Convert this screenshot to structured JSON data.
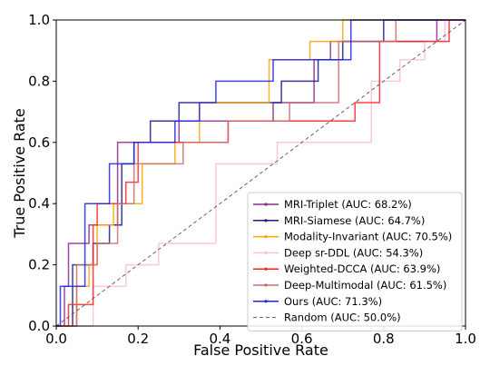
{
  "chart_data": {
    "type": "line",
    "title": "",
    "xlabel": "False Positive Rate",
    "ylabel": "True Positive Rate",
    "xlim": [
      0,
      1
    ],
    "ylim": [
      0,
      1
    ],
    "xticks": [
      "0.0",
      "0.2",
      "0.4",
      "0.6",
      "0.8",
      "1.0"
    ],
    "yticks": [
      "0.0",
      "0.2",
      "0.4",
      "0.6",
      "0.8",
      "1.0"
    ],
    "grid": false,
    "legend_position": "lower-right",
    "series": [
      {
        "name": "MRI-Triplet (AUC: 68.2%)",
        "color": "#8b2a8b",
        "x": [
          0,
          0.02,
          0.02,
          0.03,
          0.03,
          0.08,
          0.08,
          0.15,
          0.15,
          0.3,
          0.3,
          0.53,
          0.53,
          0.63,
          0.63,
          0.67,
          0.67,
          0.79,
          0.79,
          0.93,
          0.93,
          1.0
        ],
        "y": [
          0,
          0,
          0.13,
          0.13,
          0.27,
          0.27,
          0.33,
          0.33,
          0.6,
          0.6,
          0.67,
          0.67,
          0.73,
          0.73,
          0.87,
          0.87,
          0.93,
          0.93,
          0.93,
          0.93,
          1.0,
          1.0
        ]
      },
      {
        "name": "MRI-Siamese (AUC: 64.7%)",
        "color": "#1a1a8c",
        "x": [
          0,
          0.04,
          0.04,
          0.09,
          0.09,
          0.13,
          0.13,
          0.16,
          0.16,
          0.19,
          0.19,
          0.23,
          0.23,
          0.3,
          0.3,
          0.55,
          0.55,
          0.64,
          0.64,
          0.7,
          0.7,
          0.8,
          0.8,
          0.86,
          0.86,
          1.0
        ],
        "y": [
          0,
          0,
          0.2,
          0.2,
          0.27,
          0.27,
          0.33,
          0.33,
          0.53,
          0.53,
          0.6,
          0.6,
          0.67,
          0.67,
          0.73,
          0.73,
          0.8,
          0.8,
          0.87,
          0.87,
          0.93,
          0.93,
          1.0,
          1.0,
          1.0,
          1.0
        ]
      },
      {
        "name": "Modality-Invariant (AUC: 70.5%)",
        "color": "#ffa500",
        "x": [
          0,
          0.05,
          0.05,
          0.08,
          0.08,
          0.1,
          0.1,
          0.14,
          0.14,
          0.21,
          0.21,
          0.29,
          0.29,
          0.35,
          0.35,
          0.52,
          0.52,
          0.62,
          0.62,
          0.7,
          0.7,
          0.72,
          0.72,
          1.0
        ],
        "y": [
          0,
          0,
          0.13,
          0.13,
          0.2,
          0.2,
          0.33,
          0.33,
          0.4,
          0.4,
          0.53,
          0.53,
          0.6,
          0.6,
          0.73,
          0.73,
          0.87,
          0.87,
          0.93,
          0.93,
          1.0,
          1.0,
          1.0,
          1.0
        ]
      },
      {
        "name": "Deep sr-DDL (AUC: 54.3%)",
        "color": "#ffc0cb",
        "x": [
          0,
          0.09,
          0.09,
          0.17,
          0.17,
          0.25,
          0.25,
          0.39,
          0.39,
          0.54,
          0.54,
          0.77,
          0.77,
          0.84,
          0.84,
          0.9,
          0.9,
          0.95,
          0.95,
          1.0
        ],
        "y": [
          0,
          0,
          0.13,
          0.13,
          0.2,
          0.2,
          0.27,
          0.27,
          0.53,
          0.53,
          0.6,
          0.6,
          0.8,
          0.8,
          0.87,
          0.87,
          0.93,
          0.93,
          1.0,
          1.0
        ]
      },
      {
        "name": "Weighted-DCCA (AUC: 63.9%)",
        "color": "#ff2222",
        "x": [
          0,
          0.03,
          0.03,
          0.09,
          0.09,
          0.1,
          0.1,
          0.17,
          0.17,
          0.2,
          0.2,
          0.23,
          0.23,
          0.42,
          0.42,
          0.53,
          0.53,
          0.73,
          0.73,
          0.79,
          0.79,
          0.96,
          0.96,
          1.0
        ],
        "y": [
          0,
          0,
          0.07,
          0.07,
          0.33,
          0.33,
          0.4,
          0.4,
          0.47,
          0.47,
          0.6,
          0.6,
          0.6,
          0.6,
          0.67,
          0.67,
          0.67,
          0.67,
          0.73,
          0.73,
          0.93,
          0.93,
          1.0,
          1.0
        ]
      },
      {
        "name": "Deep-Multimodal (AUC: 61.5%)",
        "color": "#c96b6b",
        "x": [
          0,
          0.05,
          0.05,
          0.1,
          0.1,
          0.15,
          0.15,
          0.19,
          0.19,
          0.31,
          0.31,
          0.42,
          0.42,
          0.57,
          0.57,
          0.69,
          0.69,
          0.83,
          0.83,
          1.0
        ],
        "y": [
          0,
          0,
          0.2,
          0.2,
          0.27,
          0.27,
          0.4,
          0.4,
          0.53,
          0.53,
          0.6,
          0.6,
          0.67,
          0.67,
          0.73,
          0.73,
          0.93,
          0.93,
          1.0,
          1.0
        ]
      },
      {
        "name": "Ours (AUC: 71.3%)",
        "color": "#2222ee",
        "x": [
          0,
          0.01,
          0.01,
          0.07,
          0.07,
          0.13,
          0.13,
          0.19,
          0.19,
          0.29,
          0.29,
          0.35,
          0.35,
          0.39,
          0.39,
          0.51,
          0.51,
          0.53,
          0.53,
          0.72,
          0.72,
          0.98,
          0.98,
          1.0
        ],
        "y": [
          0,
          0,
          0.13,
          0.13,
          0.4,
          0.4,
          0.53,
          0.53,
          0.6,
          0.6,
          0.67,
          0.67,
          0.73,
          0.73,
          0.8,
          0.8,
          0.8,
          0.8,
          0.87,
          0.87,
          1.0,
          1.0,
          1.0,
          1.0
        ]
      },
      {
        "name": "Random (AUC: 50.0%)",
        "color": "#555555",
        "dashed": true,
        "x": [
          0,
          1
        ],
        "y": [
          0,
          1
        ]
      }
    ]
  }
}
